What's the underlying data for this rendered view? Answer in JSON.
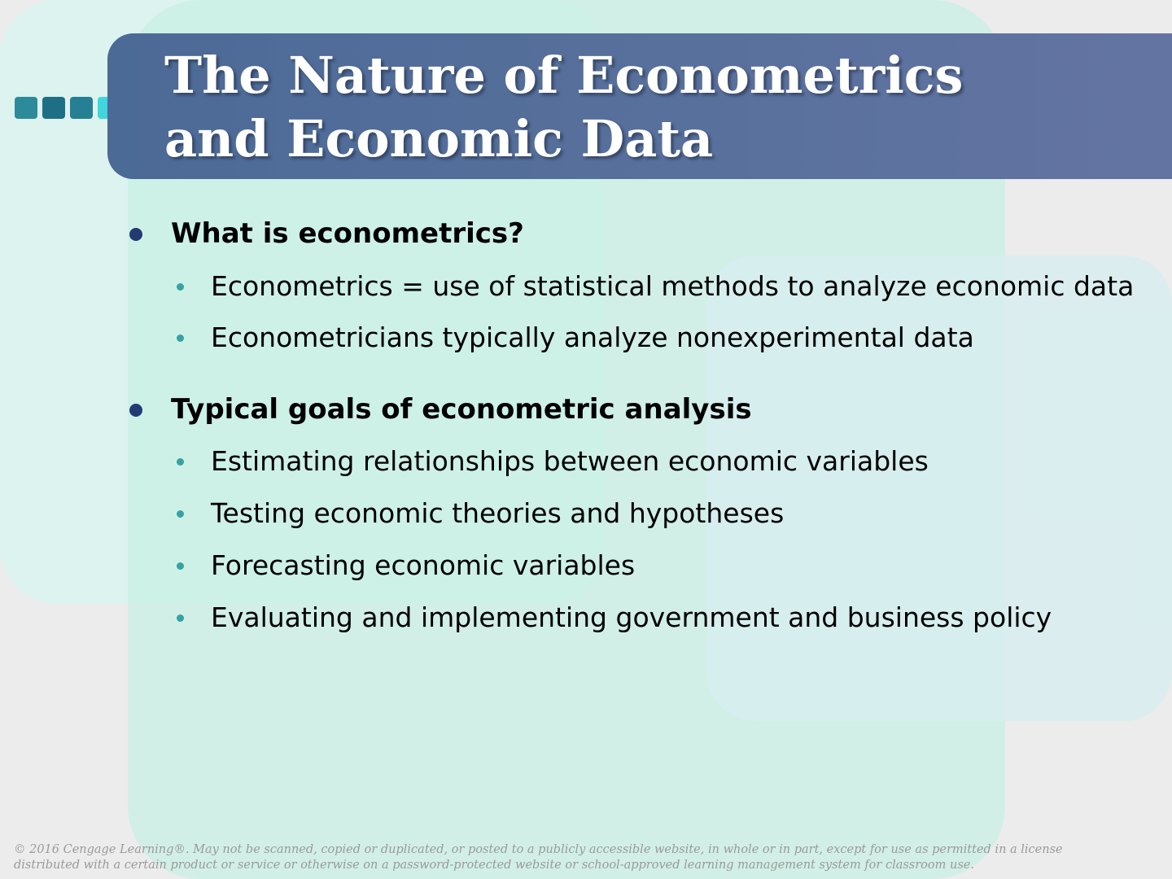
{
  "slide": {
    "title_line1": "The Nature of Econometrics",
    "title_line2": "and Economic Data",
    "sections": [
      {
        "heading": "What is econometrics?",
        "points": [
          "Econometrics = use of statistical methods to analyze economic data",
          "Econometricians typically analyze nonexperimental data"
        ]
      },
      {
        "heading": "Typical goals of econometric analysis",
        "points": [
          "Estimating relationships between economic variables",
          "Testing economic theories and hypotheses",
          "Forecasting economic variables",
          "Evaluating and implementing government and business policy"
        ]
      }
    ],
    "footer_line1": "© 2016 Cengage Learning®. May not be scanned, copied or duplicated, or posted to a publicly accessible website, in whole or in part, except for use as permitted in a license",
    "footer_line2": "distributed with a certain product or service or otherwise on a password-protected website or school-approved learning management system for classroom use."
  },
  "colors": {
    "title_bar": "#55709c",
    "heading_bullet": "#243a73",
    "point_bullet": "#36a2a2",
    "accent_squares": [
      "#2d8a9a",
      "#1d6f86",
      "#258093",
      "#3fd6dc"
    ]
  },
  "icons": {
    "decoration": "four-square-strip-icon",
    "level1_bullet": "round-bullet-icon",
    "level2_bullet": "small-round-bullet-icon"
  }
}
